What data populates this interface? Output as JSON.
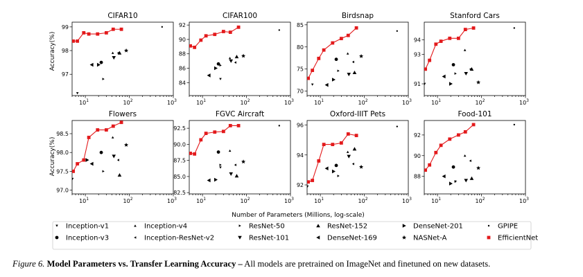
{
  "legend": [
    {
      "name": "Inception-v1",
      "marker": "tri-down-small"
    },
    {
      "name": "Inception-v4",
      "marker": "tri-up-small"
    },
    {
      "name": "ResNet-50",
      "marker": "tri-right-small"
    },
    {
      "name": "ResNet-152",
      "marker": "tri-up"
    },
    {
      "name": "DenseNet-201",
      "marker": "tri-right"
    },
    {
      "name": "GPIPE",
      "marker": "point"
    },
    {
      "name": "Inception-v3",
      "marker": "circle"
    },
    {
      "name": "Inception-ResNet-v2",
      "marker": "tri-left-small"
    },
    {
      "name": "ResNet-101",
      "marker": "tri-down"
    },
    {
      "name": "DenseNet-169",
      "marker": "tri-left"
    },
    {
      "name": "NASNet-A",
      "marker": "star"
    },
    {
      "name": "EfficientNet",
      "marker": "square-red"
    }
  ],
  "xlabel": "Number of Parameters (Millions, log-scale)",
  "ylabel": "Accuracy(%)",
  "efficientnet_color": "#e31a1c",
  "caption": {
    "figure_number": "Figure 6.",
    "title": "Model Parameters vs. Transfer Learning Accuracy –",
    "text": "All models are pretrained on ImageNet and finetuned on new datasets."
  },
  "chart_data": [
    {
      "type": "scatter",
      "title": "CIFAR10",
      "xscale": "log",
      "xlim": [
        5,
        1000
      ],
      "ylim": [
        96.1,
        99.2
      ],
      "yticks": [
        97,
        98,
        99
      ],
      "xticks": [
        10,
        100,
        1000
      ],
      "efficientnet": {
        "x": [
          5.3,
          6.6,
          9.2,
          12,
          19,
          30,
          43,
          66
        ],
        "y": [
          98.4,
          98.4,
          98.75,
          98.7,
          98.7,
          98.75,
          98.9,
          98.9
        ]
      },
      "baselines": [
        {
          "model": "Inception-v1",
          "x": 6.6,
          "y": 96.2
        },
        {
          "model": "Inception-v3",
          "x": 23,
          "y": 97.5
        },
        {
          "model": "Inception-ResNet-v2",
          "x": 56,
          "y": 97.9
        },
        {
          "model": "Inception-v4",
          "x": 42,
          "y": 97.9
        },
        {
          "model": "ResNet-50",
          "x": 25.6,
          "y": 96.8
        },
        {
          "model": "ResNet-101",
          "x": 44.5,
          "y": 97.7
        },
        {
          "model": "ResNet-152",
          "x": 60,
          "y": 97.9
        },
        {
          "model": "DenseNet-169",
          "x": 14,
          "y": 97.4
        },
        {
          "model": "DenseNet-201",
          "x": 20,
          "y": 97.4
        },
        {
          "model": "NASNet-A",
          "x": 85,
          "y": 98.0
        },
        {
          "model": "GPIPE",
          "x": 556,
          "y": 99.0
        }
      ]
    },
    {
      "type": "scatter",
      "title": "CIFAR100",
      "xscale": "log",
      "xlim": [
        5,
        1000
      ],
      "ylim": [
        82.2,
        92.4
      ],
      "yticks": [
        84,
        86,
        88,
        90,
        92
      ],
      "xticks": [
        10,
        100,
        1000
      ],
      "efficientnet": {
        "x": [
          5.3,
          6.6,
          9.2,
          12,
          19,
          30,
          43,
          66
        ],
        "y": [
          89.1,
          88.9,
          89.9,
          90.5,
          90.7,
          91.1,
          91.0,
          91.7
        ]
      },
      "baselines": [
        {
          "model": "Inception-v1",
          "x": 25.6,
          "y": 84.5
        },
        {
          "model": "Inception-v3",
          "x": 23,
          "y": 86.6
        },
        {
          "model": "Inception-ResNet-v2",
          "x": 56,
          "y": 86.8
        },
        {
          "model": "Inception-v4",
          "x": 42,
          "y": 87.4
        },
        {
          "model": "ResNet-50",
          "x": 25.6,
          "y": 86.4
        },
        {
          "model": "ResNet-101",
          "x": 44.5,
          "y": 87.0
        },
        {
          "model": "ResNet-152",
          "x": 60,
          "y": 87.6
        },
        {
          "model": "DenseNet-169",
          "x": 14,
          "y": 85.0
        },
        {
          "model": "DenseNet-201",
          "x": 20,
          "y": 86.0
        },
        {
          "model": "NASNet-A",
          "x": 85,
          "y": 87.7
        },
        {
          "model": "GPIPE",
          "x": 556,
          "y": 91.3
        }
      ]
    },
    {
      "type": "scatter",
      "title": "Birdsnap",
      "xscale": "log",
      "xlim": [
        5,
        1000
      ],
      "ylim": [
        69.0,
        85.6
      ],
      "yticks": [
        70,
        75,
        80,
        85
      ],
      "xticks": [
        10,
        100,
        1000
      ],
      "efficientnet": {
        "x": [
          5.3,
          6.6,
          9.2,
          12,
          19,
          30,
          43,
          66
        ],
        "y": [
          72.9,
          74.7,
          77.4,
          79.3,
          80.9,
          81.9,
          82.6,
          84.3
        ]
      },
      "baselines": [
        {
          "model": "Inception-v1",
          "x": 6.6,
          "y": 71.5
        },
        {
          "model": "Inception-v3",
          "x": 23,
          "y": 77.2
        },
        {
          "model": "Inception-ResNet-v2",
          "x": 56,
          "y": 76.6
        },
        {
          "model": "Inception-v4",
          "x": 42,
          "y": 78.5
        },
        {
          "model": "ResNet-50",
          "x": 25.6,
          "y": 74.6
        },
        {
          "model": "ResNet-101",
          "x": 44.5,
          "y": 73.8
        },
        {
          "model": "ResNet-152",
          "x": 60,
          "y": 74.2
        },
        {
          "model": "DenseNet-169",
          "x": 14,
          "y": 71.4
        },
        {
          "model": "DenseNet-201",
          "x": 20,
          "y": 72.6
        },
        {
          "model": "NASNet-A",
          "x": 85,
          "y": 77.9
        },
        {
          "model": "GPIPE",
          "x": 556,
          "y": 83.6
        }
      ]
    },
    {
      "type": "scatter",
      "title": "Stanford Cars",
      "xscale": "log",
      "xlim": [
        5,
        1000
      ],
      "ylim": [
        90.2,
        95.2
      ],
      "yticks": [
        91,
        93,
        94
      ],
      "xticks": [
        10,
        100,
        1000
      ],
      "efficientnet": {
        "x": [
          5.3,
          6.6,
          9.2,
          12,
          19,
          30,
          43,
          66
        ],
        "y": [
          92.0,
          92.6,
          93.7,
          93.9,
          94.1,
          94.1,
          94.7,
          94.8
        ]
      },
      "baselines": [
        {
          "model": "Inception-v1",
          "x": 5.1,
          "y": 91.0
        },
        {
          "model": "Inception-v3",
          "x": 23,
          "y": 92.3
        },
        {
          "model": "Inception-ResNet-v2",
          "x": 56,
          "y": 92.0
        },
        {
          "model": "Inception-v4",
          "x": 42,
          "y": 93.3
        },
        {
          "model": "ResNet-50",
          "x": 25.6,
          "y": 91.7
        },
        {
          "model": "ResNet-101",
          "x": 44.5,
          "y": 91.7
        },
        {
          "model": "ResNet-152",
          "x": 60,
          "y": 92.0
        },
        {
          "model": "DenseNet-169",
          "x": 14,
          "y": 91.5
        },
        {
          "model": "DenseNet-201",
          "x": 20,
          "y": 91.0
        },
        {
          "model": "NASNet-A",
          "x": 85,
          "y": 91.1
        },
        {
          "model": "GPIPE",
          "x": 556,
          "y": 94.8
        }
      ]
    },
    {
      "type": "scatter",
      "title": "Flowers",
      "xscale": "log",
      "xlim": [
        5,
        1000
      ],
      "ylim": [
        96.9,
        98.85
      ],
      "yticks": [
        97.0,
        97.5,
        98.0,
        98.5
      ],
      "xticks": [
        10,
        100,
        1000
      ],
      "efficientnet": {
        "x": [
          5.3,
          6.6,
          9.2,
          12,
          19,
          30,
          43,
          66
        ],
        "y": [
          97.5,
          97.7,
          97.8,
          98.4,
          98.6,
          98.6,
          98.7,
          98.8
        ]
      },
      "baselines": [
        {
          "model": "Inception-v1",
          "x": 5.1,
          "y": 97.3
        },
        {
          "model": "Inception-v3",
          "x": 23,
          "y": 98.0
        },
        {
          "model": "Inception-ResNet-v2",
          "x": 56,
          "y": 97.8
        },
        {
          "model": "Inception-v4",
          "x": 42,
          "y": 98.4
        },
        {
          "model": "ResNet-50",
          "x": 25.6,
          "y": 97.5
        },
        {
          "model": "ResNet-101",
          "x": 44.5,
          "y": 97.9
        },
        {
          "model": "ResNet-152",
          "x": 60,
          "y": 97.4
        },
        {
          "model": "DenseNet-169",
          "x": 14,
          "y": 97.7
        },
        {
          "model": "DenseNet-201",
          "x": 11,
          "y": 97.8
        },
        {
          "model": "NASNet-A",
          "x": 85,
          "y": 98.2
        }
      ]
    },
    {
      "type": "scatter",
      "title": "FGVC Aircraft",
      "xscale": "log",
      "xlim": [
        5,
        1000
      ],
      "ylim": [
        82.3,
        93.7
      ],
      "yticks": [
        82.5,
        85.0,
        87.5,
        90.0,
        92.5
      ],
      "xticks": [
        10,
        100,
        1000
      ],
      "efficientnet": {
        "x": [
          5.3,
          6.6,
          9.2,
          12,
          19,
          30,
          43,
          66
        ],
        "y": [
          88.6,
          88.5,
          90.7,
          91.7,
          91.9,
          92.0,
          92.9,
          92.9
        ]
      },
      "baselines": [
        {
          "model": "Inception-v1",
          "x": 25.6,
          "y": 86.4
        },
        {
          "model": "Inception-v3",
          "x": 23,
          "y": 88.8
        },
        {
          "model": "Inception-ResNet-v2",
          "x": 56,
          "y": 86.8
        },
        {
          "model": "Inception-v4",
          "x": 42,
          "y": 89.0
        },
        {
          "model": "ResNet-50",
          "x": 25.6,
          "y": 86.8
        },
        {
          "model": "ResNet-101",
          "x": 44.5,
          "y": 85.4
        },
        {
          "model": "ResNet-152",
          "x": 60,
          "y": 85.1
        },
        {
          "model": "DenseNet-169",
          "x": 14,
          "y": 84.4
        },
        {
          "model": "DenseNet-201",
          "x": 20,
          "y": 84.5
        },
        {
          "model": "NASNet-A",
          "x": 85,
          "y": 87.3
        },
        {
          "model": "GPIPE",
          "x": 556,
          "y": 92.9
        }
      ]
    },
    {
      "type": "scatter",
      "title": "Oxford-IIIT Pets",
      "xscale": "log",
      "xlim": [
        5,
        1000
      ],
      "ylim": [
        91.4,
        96.3
      ],
      "yticks": [
        92,
        94,
        96
      ],
      "xticks": [
        10,
        100,
        1000
      ],
      "efficientnet": {
        "x": [
          5.3,
          6.6,
          9.2,
          12,
          19,
          30,
          43,
          66
        ],
        "y": [
          92.2,
          92.3,
          93.6,
          94.7,
          94.7,
          94.8,
          95.4,
          95.3
        ]
      },
      "baselines": [
        {
          "model": "Inception-v1",
          "x": 5.1,
          "y": 91.9
        },
        {
          "model": "Inception-v3",
          "x": 23,
          "y": 93.3
        },
        {
          "model": "Inception-ResNet-v2",
          "x": 56,
          "y": 93.4
        },
        {
          "model": "Inception-v4",
          "x": 42,
          "y": 94.2
        },
        {
          "model": "ResNet-50",
          "x": 25.6,
          "y": 92.6
        },
        {
          "model": "ResNet-101",
          "x": 44.5,
          "y": 93.9
        },
        {
          "model": "ResNet-152",
          "x": 60,
          "y": 94.4
        },
        {
          "model": "DenseNet-169",
          "x": 14,
          "y": 93.1
        },
        {
          "model": "DenseNet-201",
          "x": 20,
          "y": 92.9
        },
        {
          "model": "NASNet-A",
          "x": 85,
          "y": 93.2
        },
        {
          "model": "GPIPE",
          "x": 556,
          "y": 95.9
        }
      ]
    },
    {
      "type": "scatter",
      "title": "Food-101",
      "xscale": "log",
      "xlim": [
        5,
        1000
      ],
      "ylim": [
        86.3,
        93.4
      ],
      "yticks": [
        88,
        90,
        92
      ],
      "xticks": [
        10,
        100,
        1000
      ],
      "efficientnet": {
        "x": [
          5.3,
          6.6,
          9.2,
          12,
          19,
          30,
          43,
          66
        ],
        "y": [
          88.6,
          89.1,
          90.3,
          91.0,
          91.6,
          92.0,
          92.3,
          93.0
        ]
      },
      "baselines": [
        {
          "model": "Inception-v1",
          "x": 25.6,
          "y": 87.5
        },
        {
          "model": "Inception-v3",
          "x": 23,
          "y": 88.9
        },
        {
          "model": "Inception-ResNet-v2",
          "x": 56,
          "y": 89.5
        },
        {
          "model": "Inception-v4",
          "x": 42,
          "y": 90.0
        },
        {
          "model": "ResNet-50",
          "x": 25.6,
          "y": 87.5
        },
        {
          "model": "ResNet-101",
          "x": 44.5,
          "y": 87.6
        },
        {
          "model": "ResNet-152",
          "x": 60,
          "y": 87.8
        },
        {
          "model": "DenseNet-169",
          "x": 14,
          "y": 88.0
        },
        {
          "model": "DenseNet-201",
          "x": 20,
          "y": 87.3
        },
        {
          "model": "NASNet-A",
          "x": 85,
          "y": 88.8
        },
        {
          "model": "GPIPE",
          "x": 556,
          "y": 93.0
        }
      ]
    }
  ]
}
